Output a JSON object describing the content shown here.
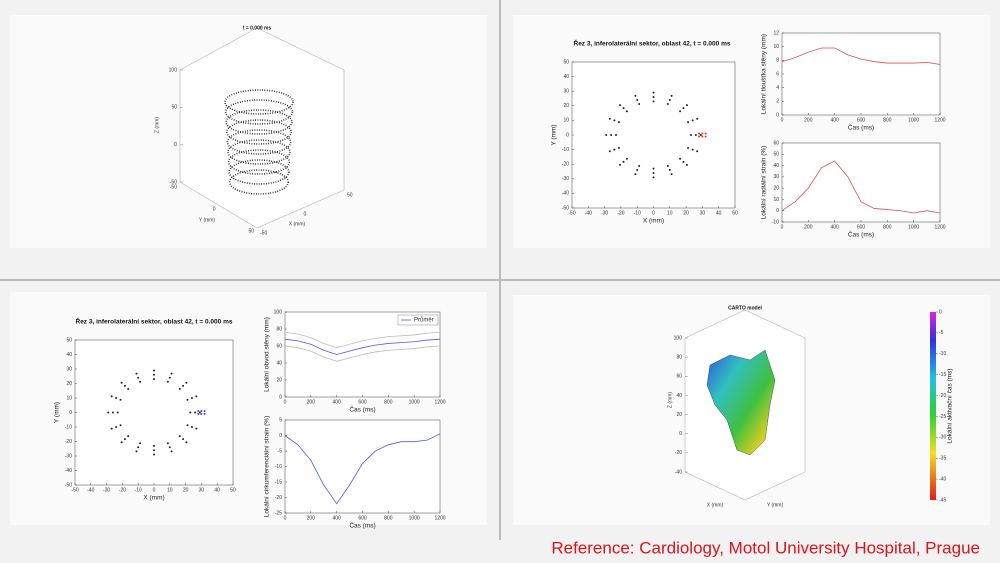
{
  "chart_data": [
    {
      "type": "scatter3d",
      "title": "t = 0.000 ms",
      "xlabel": "X (mm)",
      "ylabel": "Y (mm)",
      "zlabel": "Z (mm)",
      "zlim": [
        -50,
        100
      ],
      "zticks": [
        -50,
        0,
        50,
        100
      ],
      "xlim": [
        -50,
        50
      ],
      "xticks": [
        -50,
        0,
        50
      ],
      "ylim": [
        -50,
        50
      ],
      "yticks": [
        -50,
        0,
        50
      ]
    },
    {
      "type": "scatter",
      "title": "Řez 3, inferolaterální sektor, oblast 42, t = 0.000 ms",
      "xlabel": "X (mm)",
      "ylabel": "Y (mm)",
      "xlim": [
        -50,
        50
      ],
      "xticks": [
        -50,
        -40,
        -30,
        -20,
        -10,
        0,
        10,
        20,
        30,
        40,
        50
      ],
      "ylim": [
        -50,
        50
      ],
      "yticks": [
        -50,
        -40,
        -30,
        -20,
        -10,
        0,
        10,
        20,
        30,
        40,
        50
      ],
      "series": [
        {
          "color": "#222222",
          "x": [
            23,
            21.2,
            16.3,
            8.8,
            0,
            -8.8,
            -16.3,
            -21.2,
            -23,
            -21.2,
            -16.3,
            -8.8,
            0,
            8.8,
            16.3,
            21.2,
            26,
            24,
            18.4,
            10,
            0,
            -10,
            -18.4,
            -24,
            -26,
            -24,
            -18.4,
            -10,
            0,
            10,
            18.4,
            24,
            29,
            26.8,
            20.5,
            11.1,
            0,
            -11.1,
            -20.5,
            -26.8,
            -29,
            -26.8,
            -20.5,
            -11.1,
            0,
            11.1,
            20.5,
            26.8
          ],
          "y": [
            0,
            8.8,
            16.3,
            21.2,
            23,
            21.2,
            16.3,
            8.8,
            0,
            -8.8,
            -16.3,
            -21.2,
            -23,
            -21.2,
            -16.3,
            -8.8,
            0,
            10,
            18.4,
            24,
            26,
            24,
            18.4,
            10,
            0,
            -10,
            -18.4,
            -24,
            -26,
            -24,
            -18.4,
            -10,
            0,
            11.1,
            20.5,
            26.8,
            29,
            26.8,
            20.5,
            11.1,
            0,
            -11.1,
            -20.5,
            -26.8,
            -29,
            -26.8,
            -20.5,
            -11.1
          ]
        },
        {
          "color": "#e03030",
          "x": [
            28,
            30,
            32,
            28,
            30,
            32
          ],
          "y": [
            1,
            1,
            1,
            -1,
            -1,
            -1
          ]
        }
      ]
    },
    {
      "type": "line",
      "ylabel": "Lokální tloušťka stěny (mm)",
      "xlabel": "Čas (ms)",
      "xlim": [
        0,
        1200
      ],
      "xticks": [
        0,
        200,
        400,
        600,
        800,
        1000,
        1200
      ],
      "ylim": [
        0,
        12
      ],
      "yticks": [
        0,
        2,
        4,
        6,
        8,
        10,
        12
      ],
      "x": [
        0,
        100,
        200,
        300,
        400,
        500,
        600,
        700,
        800,
        900,
        1000,
        1100,
        1200
      ],
      "series": [
        {
          "color": "#e05050",
          "values": [
            7.8,
            8.4,
            9.2,
            9.8,
            9.8,
            8.8,
            8.2,
            7.8,
            7.6,
            7.6,
            7.6,
            7.7,
            7.4
          ]
        }
      ]
    },
    {
      "type": "line",
      "ylabel": "Lokální radiální strain (%)",
      "xlabel": "Čas (ms)",
      "xlim": [
        0,
        1200
      ],
      "xticks": [
        0,
        200,
        400,
        600,
        800,
        1000,
        1200
      ],
      "ylim": [
        -10,
        60
      ],
      "yticks": [
        -10,
        0,
        10,
        20,
        30,
        40,
        50,
        60
      ],
      "x": [
        0,
        100,
        200,
        300,
        400,
        500,
        600,
        700,
        800,
        900,
        1000,
        1100,
        1200
      ],
      "series": [
        {
          "color": "#e05050",
          "values": [
            0,
            8,
            20,
            38,
            44,
            30,
            8,
            2,
            1,
            0,
            -2,
            0,
            -2
          ]
        }
      ]
    },
    {
      "type": "scatter",
      "title": "Řez 3, inferolaterální sektor, oblast 42, t = 0.000 ms",
      "xlabel": "X (mm)",
      "ylabel": "Y (mm)",
      "xlim": [
        -50,
        50
      ],
      "xticks": [
        -50,
        -40,
        -30,
        -20,
        -10,
        0,
        10,
        20,
        30,
        40,
        50
      ],
      "ylim": [
        -50,
        50
      ],
      "yticks": [
        -50,
        -40,
        -30,
        -20,
        -10,
        0,
        10,
        20,
        30,
        40,
        50
      ],
      "series": [
        {
          "color": "#222222",
          "x": [
            23,
            21.2,
            16.3,
            8.8,
            0,
            -8.8,
            -16.3,
            -21.2,
            -23,
            -21.2,
            -16.3,
            -8.8,
            0,
            8.8,
            16.3,
            21.2,
            26,
            24,
            18.4,
            10,
            0,
            -10,
            -18.4,
            -24,
            -26,
            -24,
            -18.4,
            -10,
            0,
            10,
            18.4,
            24,
            29,
            26.8,
            20.5,
            11.1,
            0,
            -11.1,
            -20.5,
            -26.8,
            -29,
            -26.8,
            -20.5,
            -11.1,
            0,
            11.1,
            20.5,
            26.8
          ],
          "y": [
            0,
            8.8,
            16.3,
            21.2,
            23,
            21.2,
            16.3,
            8.8,
            0,
            -8.8,
            -16.3,
            -21.2,
            -23,
            -21.2,
            -16.3,
            -8.8,
            0,
            10,
            18.4,
            24,
            26,
            24,
            18.4,
            10,
            0,
            -10,
            -18.4,
            -24,
            -26,
            -24,
            -18.4,
            -10,
            0,
            11.1,
            20.5,
            26.8,
            29,
            26.8,
            20.5,
            11.1,
            0,
            -11.1,
            -20.5,
            -26.8,
            -29,
            -26.8,
            -20.5,
            -11.1
          ]
        },
        {
          "color": "#4040e0",
          "x": [
            28,
            30,
            32,
            28,
            30,
            32
          ],
          "y": [
            1,
            1,
            1,
            -1,
            -1,
            -1
          ]
        }
      ]
    },
    {
      "type": "line",
      "ylabel": "Lokální obvod stěny (mm)",
      "xlabel": "Čas (ms)",
      "xlim": [
        0,
        1200
      ],
      "xticks": [
        0,
        200,
        400,
        600,
        800,
        1000,
        1200
      ],
      "ylim": [
        0,
        100
      ],
      "yticks": [
        0,
        20,
        40,
        60,
        80,
        100
      ],
      "x": [
        0,
        100,
        200,
        300,
        400,
        500,
        600,
        700,
        800,
        900,
        1000,
        1100,
        1200
      ],
      "series": [
        {
          "color": "#bbbbbb",
          "values": [
            76,
            74,
            70,
            63,
            58,
            62,
            66,
            69,
            71,
            72,
            73,
            75,
            76
          ]
        },
        {
          "color": "#bbbbbb",
          "values": [
            60,
            58,
            54,
            47,
            42,
            46,
            50,
            53,
            55,
            56,
            57,
            59,
            60
          ]
        },
        {
          "name": "Průměr",
          "color": "#5555ee",
          "values": [
            68,
            66,
            62,
            55,
            50,
            54,
            58,
            61,
            63,
            64,
            65,
            67,
            68
          ]
        }
      ]
    },
    {
      "type": "line",
      "ylabel": "Lokální cirkumferenciální strain (%)",
      "xlabel": "Čas (ms)",
      "xlim": [
        0,
        1200
      ],
      "xticks": [
        0,
        200,
        400,
        600,
        800,
        1000,
        1200
      ],
      "ylim": [
        -25,
        5
      ],
      "yticks": [
        -25,
        -20,
        -15,
        -10,
        -5,
        0,
        5
      ],
      "x": [
        0,
        100,
        200,
        300,
        400,
        500,
        600,
        700,
        800,
        900,
        1000,
        1100,
        1200
      ],
      "series": [
        {
          "color": "#5555ee",
          "values": [
            0,
            -3,
            -8,
            -16,
            -22,
            -16,
            -9,
            -5,
            -3,
            -2,
            -2,
            -1.5,
            0.5
          ]
        }
      ]
    },
    {
      "type": "surface3d",
      "title": "CARTO model",
      "xlabel": "X (mm)",
      "ylabel": "Y (mm)",
      "zlabel": "Z (mm)",
      "zlim": [
        -40,
        100
      ],
      "zticks": [
        -40,
        -20,
        0,
        20,
        40,
        60,
        80,
        100
      ],
      "colorbar_label": "Lokální aktivační čas (ms)",
      "clim": [
        -45,
        0
      ],
      "cticks": [
        -45,
        -40,
        -35,
        -30,
        -25,
        -20,
        -15,
        -10,
        -5,
        0
      ]
    }
  ],
  "reference": "Reference: Cardiology, Motol University Hospital, Prague"
}
